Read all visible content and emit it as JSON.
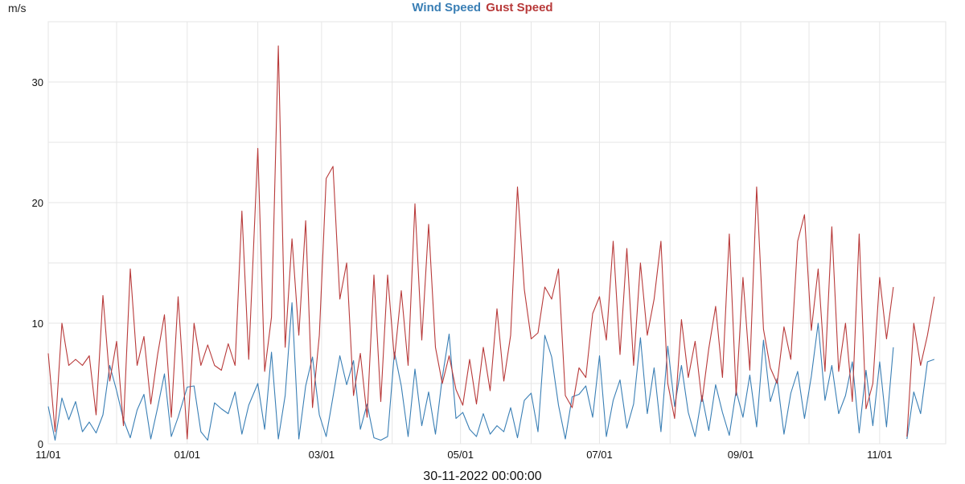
{
  "chart_data": {
    "type": "line",
    "title": "",
    "ylabel": "m/s",
    "xlabel": "30-11-2022 00:00:00",
    "xlim": [
      "2021-11-01",
      "2022-11-30"
    ],
    "ylim": [
      0,
      35
    ],
    "yticks": [
      0,
      10,
      20,
      30
    ],
    "xticks": [
      {
        "date": "2021-11-01",
        "label": "11/01"
      },
      {
        "date": "2022-01-01",
        "label": "01/01"
      },
      {
        "date": "2022-03-01",
        "label": "03/01"
      },
      {
        "date": "2022-05-01",
        "label": "05/01"
      },
      {
        "date": "2022-07-01",
        "label": "07/01"
      },
      {
        "date": "2022-09-01",
        "label": "09/01"
      },
      {
        "date": "2022-11-01",
        "label": "11/01"
      }
    ],
    "grid": true,
    "legend": "top-center",
    "x": [
      "2021-11-01",
      "2021-11-04",
      "2021-11-07",
      "2021-11-10",
      "2021-11-13",
      "2021-11-16",
      "2021-11-19",
      "2021-11-22",
      "2021-11-25",
      "2021-11-28",
      "2021-12-01",
      "2021-12-04",
      "2021-12-07",
      "2021-12-10",
      "2021-12-13",
      "2021-12-16",
      "2021-12-19",
      "2021-12-22",
      "2021-12-25",
      "2021-12-28",
      "2022-01-01",
      "2022-01-04",
      "2022-01-07",
      "2022-01-10",
      "2022-01-13",
      "2022-01-16",
      "2022-01-19",
      "2022-01-22",
      "2022-01-25",
      "2022-01-28",
      "2022-02-01",
      "2022-02-04",
      "2022-02-07",
      "2022-02-10",
      "2022-02-13",
      "2022-02-16",
      "2022-02-19",
      "2022-02-22",
      "2022-02-25",
      "2022-02-28",
      "2022-03-03",
      "2022-03-06",
      "2022-03-09",
      "2022-03-12",
      "2022-03-15",
      "2022-03-18",
      "2022-03-21",
      "2022-03-24",
      "2022-03-27",
      "2022-03-30",
      "2022-04-02",
      "2022-04-05",
      "2022-04-08",
      "2022-04-11",
      "2022-04-14",
      "2022-04-17",
      "2022-04-20",
      "2022-04-23",
      "2022-04-26",
      "2022-04-29",
      "2022-05-02",
      "2022-05-05",
      "2022-05-08",
      "2022-05-11",
      "2022-05-14",
      "2022-05-17",
      "2022-05-20",
      "2022-05-23",
      "2022-05-26",
      "2022-05-29",
      "2022-06-01",
      "2022-06-04",
      "2022-06-07",
      "2022-06-10",
      "2022-06-13",
      "2022-06-16",
      "2022-06-19",
      "2022-06-22",
      "2022-06-25",
      "2022-06-28",
      "2022-07-01",
      "2022-07-04",
      "2022-07-07",
      "2022-07-10",
      "2022-07-13",
      "2022-07-16",
      "2022-07-19",
      "2022-07-22",
      "2022-07-25",
      "2022-07-28",
      "2022-07-31",
      "2022-08-03",
      "2022-08-06",
      "2022-08-09",
      "2022-08-12",
      "2022-08-15",
      "2022-08-18",
      "2022-08-21",
      "2022-08-24",
      "2022-08-27",
      "2022-08-30",
      "2022-09-02",
      "2022-09-05",
      "2022-09-08",
      "2022-09-11",
      "2022-09-14",
      "2022-09-17",
      "2022-09-20",
      "2022-09-23",
      "2022-09-26",
      "2022-09-29",
      "2022-10-02",
      "2022-10-05",
      "2022-10-08",
      "2022-10-11",
      "2022-10-14",
      "2022-10-17",
      "2022-10-20",
      "2022-10-23",
      "2022-10-26",
      "2022-10-29",
      "2022-11-01",
      "2022-11-04",
      "2022-11-07",
      "2022-11-10",
      "2022-11-13",
      "2022-11-16",
      "2022-11-19",
      "2022-11-22",
      "2022-11-25",
      "2022-11-28"
    ],
    "series": [
      {
        "name": "Wind Speed",
        "color": "#3a7fb5",
        "values": [
          3.1,
          0.3,
          3.8,
          2.0,
          3.5,
          1.0,
          1.8,
          0.9,
          2.4,
          6.5,
          4.4,
          2.0,
          0.5,
          2.8,
          4.1,
          0.4,
          3.0,
          5.8,
          0.6,
          2.2,
          4.7,
          4.8,
          1.0,
          0.3,
          3.4,
          2.9,
          2.5,
          4.3,
          0.8,
          3.2,
          5.0,
          1.2,
          7.6,
          0.4,
          4.0,
          11.7,
          0.4,
          4.8,
          7.2,
          2.4,
          0.6,
          3.9,
          7.3,
          4.9,
          6.9,
          1.2,
          3.3,
          0.5,
          0.3,
          0.6,
          7.6,
          4.8,
          0.6,
          6.2,
          1.5,
          4.3,
          0.8,
          5.5,
          9.1,
          2.1,
          2.6,
          1.2,
          0.6,
          2.5,
          0.8,
          1.5,
          1.0,
          3.0,
          0.5,
          3.6,
          4.2,
          1.0,
          9.0,
          7.2,
          3.2,
          0.4,
          3.9,
          4.1,
          4.8,
          2.2,
          7.3,
          0.6,
          3.6,
          5.3,
          1.3,
          3.3,
          8.8,
          2.5,
          6.3,
          1.0,
          8.1,
          3.1,
          6.5,
          2.6,
          0.6,
          4.0,
          1.1,
          4.9,
          2.6,
          0.7,
          4.4,
          2.2,
          5.7,
          1.4,
          8.6,
          3.5,
          5.4,
          0.8,
          4.2,
          6.0,
          2.1,
          5.6,
          10.0,
          3.6,
          6.5,
          2.5,
          4.0,
          6.8,
          0.9,
          6.1,
          1.5,
          6.8,
          1.4,
          8.0,
          null,
          0.4,
          4.3,
          2.5,
          6.8,
          7.0,
          null
        ]
      },
      {
        "name": "Gust Speed",
        "color": "#b83a3a",
        "values": [
          7.5,
          1.0,
          10.0,
          6.5,
          7.0,
          6.5,
          7.3,
          2.4,
          12.3,
          5.2,
          8.5,
          1.5,
          14.5,
          6.5,
          8.9,
          3.3,
          7.4,
          10.7,
          2.2,
          12.2,
          0.4,
          10.0,
          6.5,
          8.2,
          6.5,
          6.1,
          8.3,
          6.5,
          19.3,
          7.0,
          24.5,
          6.0,
          10.5,
          33.0,
          8.0,
          17.0,
          9.0,
          18.5,
          3.0,
          9.0,
          22.0,
          23.0,
          12.0,
          15.0,
          4.0,
          7.5,
          2.2,
          14.0,
          3.5,
          14.0,
          7.0,
          12.7,
          6.5,
          19.9,
          8.6,
          18.2,
          8.0,
          5.0,
          7.3,
          4.5,
          3.2,
          7.0,
          3.3,
          8.0,
          4.4,
          11.2,
          5.2,
          9.0,
          21.3,
          12.8,
          8.7,
          9.2,
          13.0,
          12.0,
          14.5,
          4.0,
          3.0,
          6.3,
          5.5,
          10.8,
          12.2,
          8.6,
          16.8,
          7.4,
          16.2,
          6.5,
          15.0,
          9.0,
          12.0,
          16.8,
          5.0,
          2.1,
          10.3,
          5.5,
          8.5,
          3.5,
          7.9,
          11.4,
          5.5,
          17.4,
          4.0,
          13.8,
          6.1,
          21.3,
          9.5,
          6.3,
          5.0,
          9.7,
          7.0,
          16.8,
          19.0,
          9.4,
          14.5,
          6.0,
          18.0,
          6.0,
          10.0,
          3.5,
          17.4,
          2.9,
          5.0,
          13.8,
          8.7,
          13.0,
          null,
          0.6,
          10.0,
          6.5,
          9.0,
          12.2,
          null
        ]
      }
    ]
  }
}
